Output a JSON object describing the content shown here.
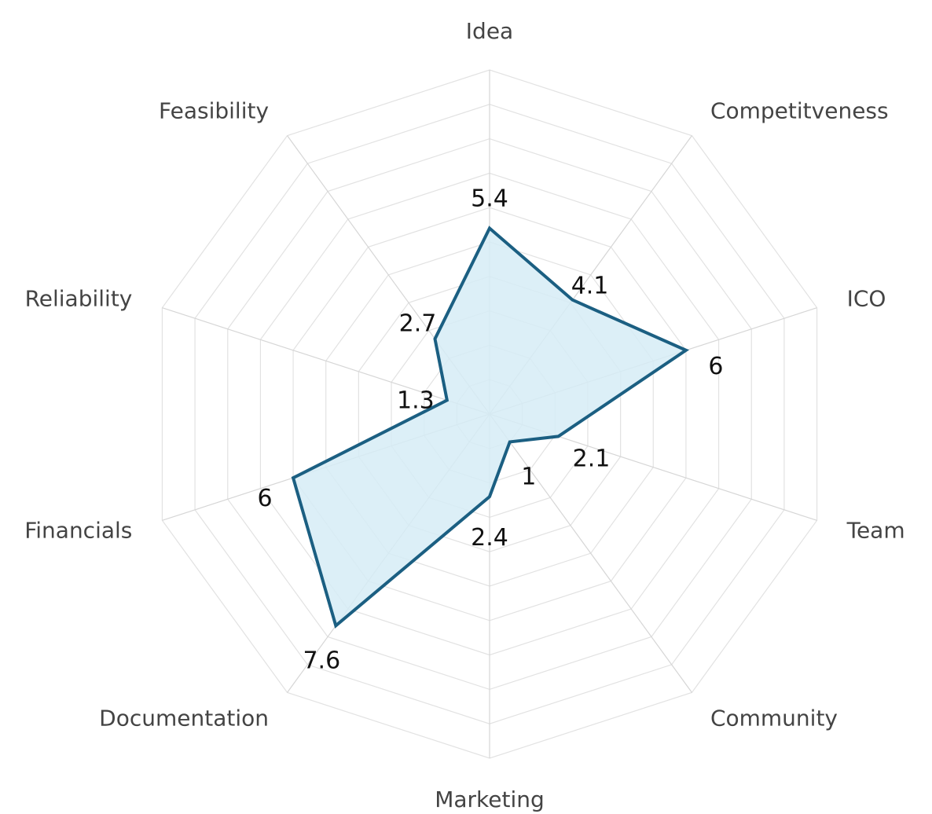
{
  "chart_data": {
    "type": "radar",
    "categories": [
      "Idea",
      "Competitveness",
      "ICO",
      "Team",
      "Community",
      "Marketing",
      "Documentation",
      "Financials",
      "Reliability",
      "Feasibility"
    ],
    "series": [
      {
        "values": [
          5.4,
          4.1,
          6,
          2.1,
          1,
          2.4,
          7.6,
          6,
          1.3,
          2.7
        ],
        "value_labels": [
          "5.4",
          "4.1",
          "6",
          "2.1",
          "1",
          "2.4",
          "7.6",
          "6",
          "1.3",
          "2.7"
        ]
      }
    ],
    "rlim": [
      0,
      10
    ],
    "grid": true,
    "grid_rings": 10,
    "colors": {
      "line": "#1b5f82",
      "fill": "#d6ecf6",
      "grid": "#e2e2e2"
    }
  }
}
